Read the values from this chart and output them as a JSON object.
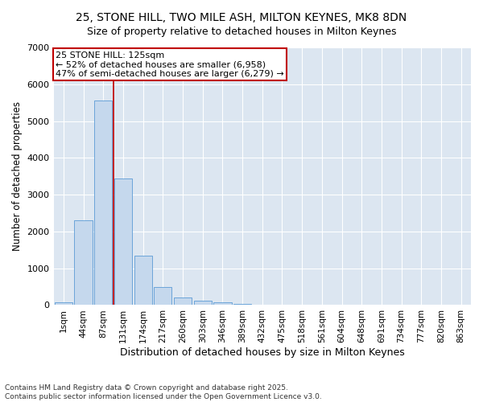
{
  "title": "25, STONE HILL, TWO MILE ASH, MILTON KEYNES, MK8 8DN",
  "subtitle": "Size of property relative to detached houses in Milton Keynes",
  "xlabel": "Distribution of detached houses by size in Milton Keynes",
  "ylabel": "Number of detached properties",
  "categories": [
    "1sqm",
    "44sqm",
    "87sqm",
    "131sqm",
    "174sqm",
    "217sqm",
    "260sqm",
    "303sqm",
    "346sqm",
    "389sqm",
    "432sqm",
    "475sqm",
    "518sqm",
    "561sqm",
    "604sqm",
    "648sqm",
    "691sqm",
    "734sqm",
    "777sqm",
    "820sqm",
    "863sqm"
  ],
  "values": [
    75,
    2300,
    5560,
    3450,
    1340,
    480,
    200,
    130,
    70,
    30,
    5,
    3,
    2,
    1,
    0,
    0,
    0,
    0,
    0,
    0,
    0
  ],
  "bar_color": "#c5d8ed",
  "bar_edge_color": "#5b9bd5",
  "vline_x_index": 2,
  "vline_color": "#c00000",
  "annotation_title": "25 STONE HILL: 125sqm",
  "annotation_line1": "← 52% of detached houses are smaller (6,958)",
  "annotation_line2": "47% of semi-detached houses are larger (6,279) →",
  "annotation_box_color": "#c00000",
  "ylim": [
    0,
    7000
  ],
  "yticks": [
    0,
    1000,
    2000,
    3000,
    4000,
    5000,
    6000,
    7000
  ],
  "footer_line1": "Contains HM Land Registry data © Crown copyright and database right 2025.",
  "footer_line2": "Contains public sector information licensed under the Open Government Licence v3.0.",
  "plot_bg_color": "#dce6f1",
  "fig_bg_color": "#ffffff",
  "grid_color": "#ffffff"
}
